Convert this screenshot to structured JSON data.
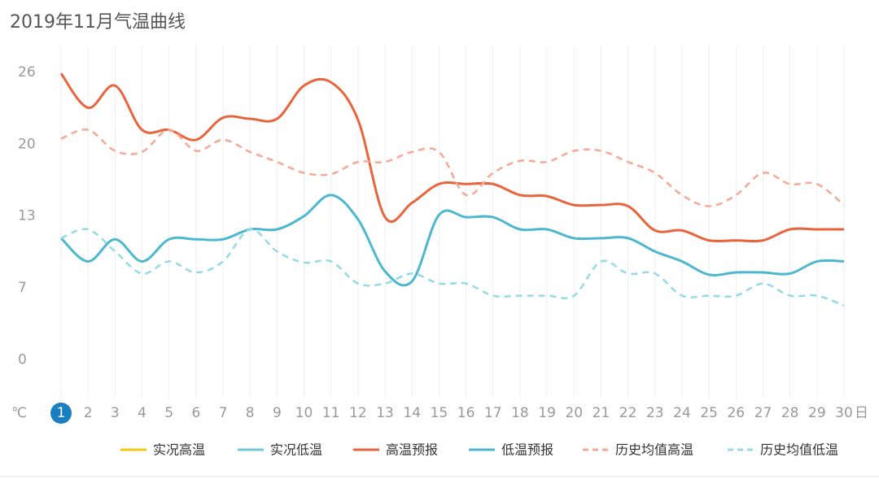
{
  "chart_data": {
    "type": "line",
    "title": "2019年11月气温曲线",
    "y_unit": "℃",
    "x_unit": "日",
    "categories": [
      "1",
      "2",
      "3",
      "4",
      "5",
      "6",
      "7",
      "8",
      "9",
      "10",
      "11",
      "12",
      "13",
      "14",
      "15",
      "16",
      "17",
      "18",
      "19",
      "20",
      "21",
      "22",
      "23",
      "24",
      "25",
      "26",
      "27",
      "28",
      "29",
      "30"
    ],
    "selected_index": 0,
    "ylim": [
      -3.5,
      28.5
    ],
    "yticks": [
      0,
      {
        "value": 6.5,
        "label": "7"
      },
      13,
      {
        "value": 19.5,
        "label": "20"
      },
      26
    ],
    "grid": true,
    "series": [
      {
        "name": "实况高温",
        "color": "#f2c811",
        "dashed": false,
        "values": [
          null,
          null,
          null,
          null,
          null,
          null,
          null,
          null,
          null,
          null,
          null,
          null,
          null,
          null,
          null,
          null,
          null,
          null,
          null,
          null,
          null,
          null,
          null,
          null,
          null,
          null,
          null,
          null,
          null,
          null
        ]
      },
      {
        "name": "实况低温",
        "color": "#6cc9dc",
        "dashed": false,
        "values": [
          null,
          null,
          null,
          null,
          null,
          null,
          null,
          null,
          null,
          null,
          null,
          null,
          null,
          null,
          null,
          null,
          null,
          null,
          null,
          null,
          null,
          null,
          null,
          null,
          null,
          null,
          null,
          null,
          null,
          null
        ]
      },
      {
        "name": "高温预报",
        "color": "#e8643c",
        "dashed": false,
        "values": [
          25.9,
          22.8,
          24.8,
          20.8,
          20.8,
          19.9,
          21.9,
          21.8,
          21.8,
          24.8,
          25.1,
          21.7,
          12.9,
          14.2,
          15.9,
          15.9,
          15.9,
          14.9,
          14.8,
          14.0,
          14.0,
          13.9,
          11.7,
          11.7,
          10.8,
          10.8,
          10.8,
          11.8,
          11.8,
          11.8
        ]
      },
      {
        "name": "低温预报",
        "color": "#4db7d0",
        "dashed": false,
        "values": [
          11.0,
          8.9,
          10.9,
          8.9,
          10.9,
          10.9,
          10.9,
          11.8,
          11.8,
          13.0,
          14.9,
          12.7,
          8.0,
          7.1,
          13.1,
          12.9,
          12.9,
          11.8,
          11.8,
          11.0,
          11.0,
          11.0,
          9.8,
          8.9,
          7.7,
          7.9,
          7.9,
          7.8,
          8.9,
          8.9
        ]
      },
      {
        "name": "历史均值高温",
        "color": "#f5a893",
        "dashed": true,
        "values": [
          20.0,
          20.8,
          18.9,
          18.8,
          20.8,
          18.9,
          19.9,
          18.8,
          17.9,
          16.9,
          16.8,
          17.9,
          17.9,
          18.8,
          18.8,
          14.9,
          16.9,
          18.0,
          17.9,
          18.9,
          18.9,
          17.9,
          16.9,
          14.9,
          13.9,
          14.9,
          16.9,
          15.9,
          15.9,
          14.0
        ]
      },
      {
        "name": "历史均值低温",
        "color": "#94d9e6",
        "dashed": true,
        "values": [
          11.0,
          11.8,
          9.8,
          7.8,
          8.9,
          7.9,
          8.9,
          11.8,
          9.8,
          8.8,
          8.9,
          6.9,
          6.9,
          7.8,
          6.9,
          6.9,
          5.8,
          5.8,
          5.8,
          5.8,
          8.9,
          7.8,
          7.8,
          5.8,
          5.8,
          5.8,
          6.9,
          5.8,
          5.8,
          4.9
        ]
      }
    ]
  }
}
